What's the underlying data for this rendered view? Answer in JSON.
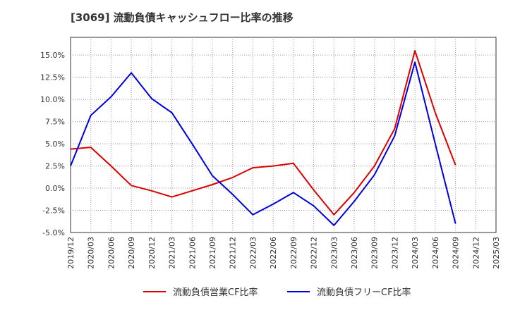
{
  "title": "[3069]  流動負債キャッシュフロー比率の推移",
  "chart_data": {
    "type": "line",
    "title": "[3069]  流動負債キャッシュフロー比率の推移",
    "x": [
      "2019/12",
      "2020/03",
      "2020/06",
      "2020/09",
      "2020/12",
      "2021/03",
      "2021/06",
      "2021/09",
      "2021/12",
      "2022/03",
      "2022/06",
      "2022/09",
      "2022/12",
      "2023/03",
      "2023/06",
      "2023/09",
      "2023/12",
      "2024/03",
      "2024/06",
      "2024/09",
      "2024/12",
      "2025/03"
    ],
    "y_ticks": [
      -5.0,
      -2.5,
      0.0,
      2.5,
      5.0,
      7.5,
      10.0,
      12.5,
      15.0
    ],
    "y_tick_labels": [
      "-5.0%",
      "-2.5%",
      "0.0%",
      "2.5%",
      "5.0%",
      "7.5%",
      "10.0%",
      "12.5%",
      "15.0%"
    ],
    "ylim": [
      -5.0,
      17.0
    ],
    "grid": true,
    "legend_position": "bottom",
    "series": [
      {
        "name": "流動負債営業CF比率",
        "color": "#dd0000",
        "points": [
          [
            "2019/12",
            4.4
          ],
          [
            "2020/03",
            4.6
          ],
          [
            "2020/06",
            2.5
          ],
          [
            "2020/09",
            0.3
          ],
          [
            "2020/12",
            -0.3
          ],
          [
            "2021/03",
            -1.0
          ],
          [
            "2021/06",
            -0.3
          ],
          [
            "2021/09",
            0.4
          ],
          [
            "2021/12",
            1.2
          ],
          [
            "2022/03",
            2.3
          ],
          [
            "2022/06",
            2.5
          ],
          [
            "2022/09",
            2.8
          ],
          [
            "2022/12",
            -0.2
          ],
          [
            "2023/03",
            -3.0
          ],
          [
            "2023/06",
            -0.5
          ],
          [
            "2023/09",
            2.5
          ],
          [
            "2023/12",
            6.7
          ],
          [
            "2024/03",
            15.5
          ],
          [
            "2024/06",
            8.5
          ],
          [
            "2024/09",
            2.6
          ]
        ]
      },
      {
        "name": "流動負債フリーCF比率",
        "color": "#0000dd",
        "points": [
          [
            "2019/12",
            2.5
          ],
          [
            "2020/03",
            8.2
          ],
          [
            "2020/06",
            10.3
          ],
          [
            "2020/09",
            13.0
          ],
          [
            "2020/12",
            10.1
          ],
          [
            "2021/03",
            8.5
          ],
          [
            "2021/06",
            5.0
          ],
          [
            "2021/09",
            1.4
          ],
          [
            "2021/12",
            -0.7
          ],
          [
            "2022/03",
            -3.0
          ],
          [
            "2022/06",
            -1.8
          ],
          [
            "2022/09",
            -0.5
          ],
          [
            "2022/12",
            -2.0
          ],
          [
            "2023/03",
            -4.2
          ],
          [
            "2023/06",
            -1.5
          ],
          [
            "2023/09",
            1.5
          ],
          [
            "2023/12",
            5.9
          ],
          [
            "2024/03",
            14.2
          ],
          [
            "2024/06",
            5.0
          ],
          [
            "2024/09",
            -4.0
          ]
        ]
      }
    ]
  }
}
